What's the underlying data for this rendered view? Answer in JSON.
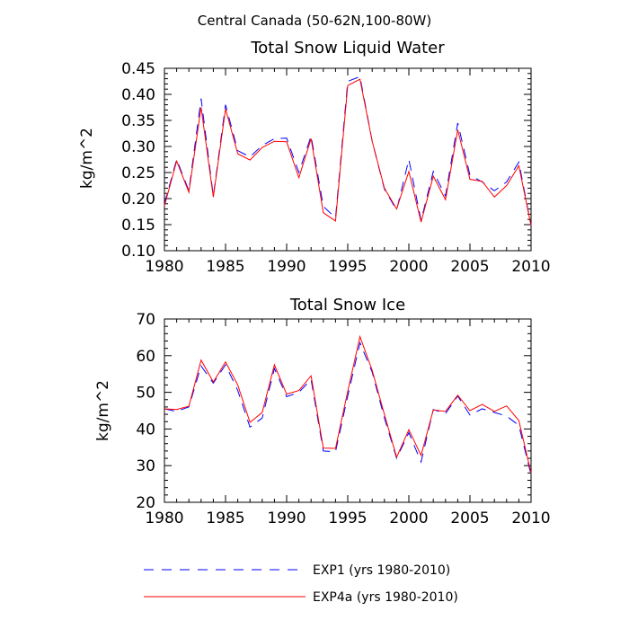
{
  "super_title": "Central Canada (50-62N,100-80W)",
  "chart_data": [
    {
      "type": "line",
      "title": "Total Snow Liquid Water",
      "ylabel": "kg/m^2",
      "xlabel": "",
      "xlim": [
        1980,
        2010
      ],
      "ylim": [
        0.1,
        0.45
      ],
      "xticks": [
        "1980",
        "1985",
        "1990",
        "1995",
        "2000",
        "2005",
        "2010"
      ],
      "yticks": [
        "0.10",
        "0.15",
        "0.20",
        "0.25",
        "0.30",
        "0.35",
        "0.40",
        "0.45"
      ],
      "x": [
        1980,
        1981,
        1982,
        1983,
        1984,
        1985,
        1986,
        1987,
        1988,
        1989,
        1990,
        1991,
        1992,
        1993,
        1994,
        1995,
        1996,
        1997,
        1998,
        1999,
        2000,
        2001,
        2002,
        2003,
        2004,
        2005,
        2006,
        2007,
        2008,
        2009,
        2010
      ],
      "series": [
        {
          "name": "EXP1 (yrs 1980-2010)",
          "color": "#0000ff",
          "dash": "dashed",
          "values": [
            0.19,
            0.275,
            0.215,
            0.392,
            0.205,
            0.38,
            0.292,
            0.28,
            0.302,
            0.315,
            0.316,
            0.25,
            0.32,
            0.185,
            0.163,
            0.425,
            0.434,
            0.31,
            0.218,
            0.178,
            0.275,
            0.158,
            0.252,
            0.205,
            0.345,
            0.245,
            0.232,
            0.215,
            0.232,
            0.27,
            0.148
          ]
        },
        {
          "name": "EXP4a (yrs 1980-2010)",
          "color": "#ff0000",
          "dash": "solid",
          "values": [
            0.186,
            0.272,
            0.212,
            0.375,
            0.203,
            0.372,
            0.286,
            0.274,
            0.298,
            0.31,
            0.309,
            0.24,
            0.315,
            0.173,
            0.157,
            0.417,
            0.429,
            0.31,
            0.22,
            0.18,
            0.252,
            0.155,
            0.243,
            0.198,
            0.332,
            0.237,
            0.233,
            0.203,
            0.225,
            0.263,
            0.148
          ]
        }
      ]
    },
    {
      "type": "line",
      "title": "Total Snow Ice",
      "ylabel": "kg/m^2",
      "xlabel": "",
      "xlim": [
        1980,
        2010
      ],
      "ylim": [
        20,
        70
      ],
      "xticks": [
        "1980",
        "1985",
        "1990",
        "1995",
        "2000",
        "2005",
        "2010"
      ],
      "yticks": [
        "20",
        "30",
        "40",
        "50",
        "60",
        "70"
      ],
      "x": [
        1980,
        1981,
        1982,
        1983,
        1984,
        1985,
        1986,
        1987,
        1988,
        1989,
        1990,
        1991,
        1992,
        1993,
        1994,
        1995,
        1996,
        1997,
        1998,
        1999,
        2000,
        2001,
        2002,
        2003,
        2004,
        2005,
        2006,
        2007,
        2008,
        2009,
        2010
      ],
      "series": [
        {
          "name": "EXP1 (yrs 1980-2010)",
          "color": "#0000ff",
          "dash": "dashed",
          "values": [
            45.5,
            44.8,
            46.0,
            57.2,
            52.5,
            57.5,
            50.5,
            40.5,
            43.0,
            56.5,
            48.8,
            50.0,
            53.5,
            34.0,
            33.8,
            49.0,
            63.5,
            55.5,
            43.0,
            32.0,
            39.0,
            31.0,
            45.3,
            44.2,
            49.0,
            43.8,
            45.5,
            44.5,
            43.5,
            41.0,
            27.5
          ]
        },
        {
          "name": "EXP4a (yrs 1980-2010)",
          "color": "#ff0000",
          "dash": "solid",
          "values": [
            45.5,
            45.3,
            46.2,
            58.8,
            52.8,
            58.3,
            52.0,
            41.8,
            44.5,
            57.5,
            49.5,
            50.5,
            54.5,
            34.8,
            34.7,
            50.3,
            65.2,
            56.0,
            44.0,
            32.3,
            39.8,
            32.8,
            45.2,
            44.8,
            49.2,
            45.0,
            46.7,
            44.8,
            46.3,
            42.3,
            28.0
          ]
        }
      ]
    }
  ],
  "legend": [
    {
      "label": "EXP1 (yrs 1980-2010)",
      "color": "#0000ff",
      "dash": "dashed"
    },
    {
      "label": "EXP4a (yrs 1980-2010)",
      "color": "#ff0000",
      "dash": "solid"
    }
  ]
}
